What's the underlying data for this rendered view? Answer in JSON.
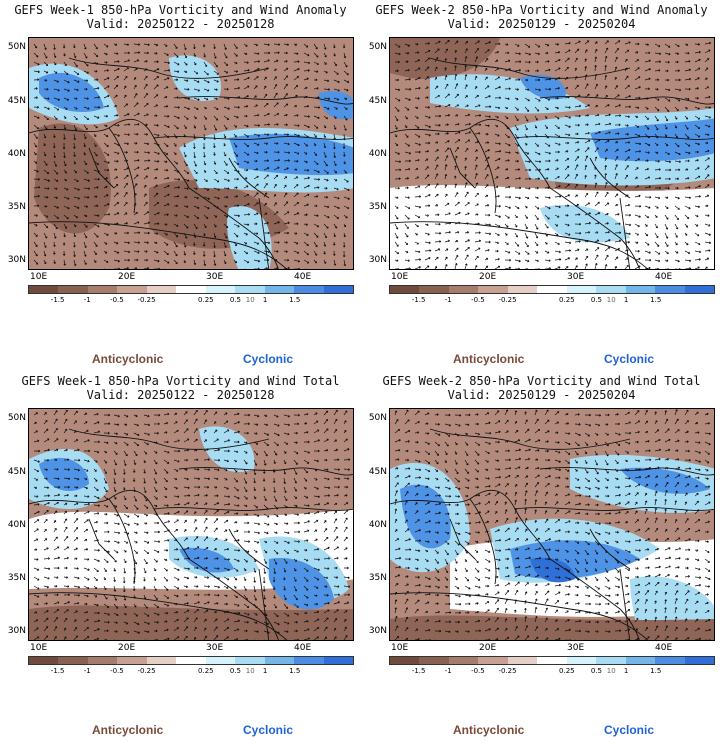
{
  "panels": [
    {
      "title": "GEFS Week-1 850-hPa Vorticity and Wind Anomaly",
      "valid": "Valid: 20250122 - 20250128"
    },
    {
      "title": "GEFS Week-2 850-hPa Vorticity and Wind Anomaly",
      "valid": "Valid: 20250129 - 20250204"
    },
    {
      "title": "GEFS Week-1 850-hPa Vorticity and Wind Total",
      "valid": "Valid: 20250122 - 20250128"
    },
    {
      "title": "GEFS Week-2 850-hPa Vorticity and Wind Total",
      "valid": "Valid: 20250129 - 20250204"
    }
  ],
  "axes": {
    "lat_labels": [
      "50N",
      "45N",
      "40N",
      "35N",
      "30N"
    ],
    "lon_labels": [
      "10E",
      "20E",
      "30E",
      "40E"
    ]
  },
  "colorbar": {
    "labels": [
      "-1.5",
      "-1",
      "-0.5",
      "-0.25",
      "0.25",
      "0.5",
      "1",
      "1.5"
    ],
    "unit_mark": "10",
    "colors": [
      "#6f4a3d",
      "#8a6050",
      "#a77c6b",
      "#c8a192",
      "#e6cfc6",
      "#ffffff",
      "#d6f3fb",
      "#a8dcf3",
      "#74b6ea",
      "#4a8de2",
      "#2f6fd8"
    ]
  },
  "legend": {
    "anticyclonic": "Anticyclonic",
    "cyclonic": "Cyclonic"
  },
  "colors": {
    "anticyclonic_text": "#7a4a3a",
    "cyclonic_text": "#1f62d6",
    "brown": "#b38a7c",
    "dark_brown": "#8e6556",
    "light_blue": "#a8dcf3",
    "blue": "#4f93e6",
    "dark_blue": "#2f6fd8"
  }
}
